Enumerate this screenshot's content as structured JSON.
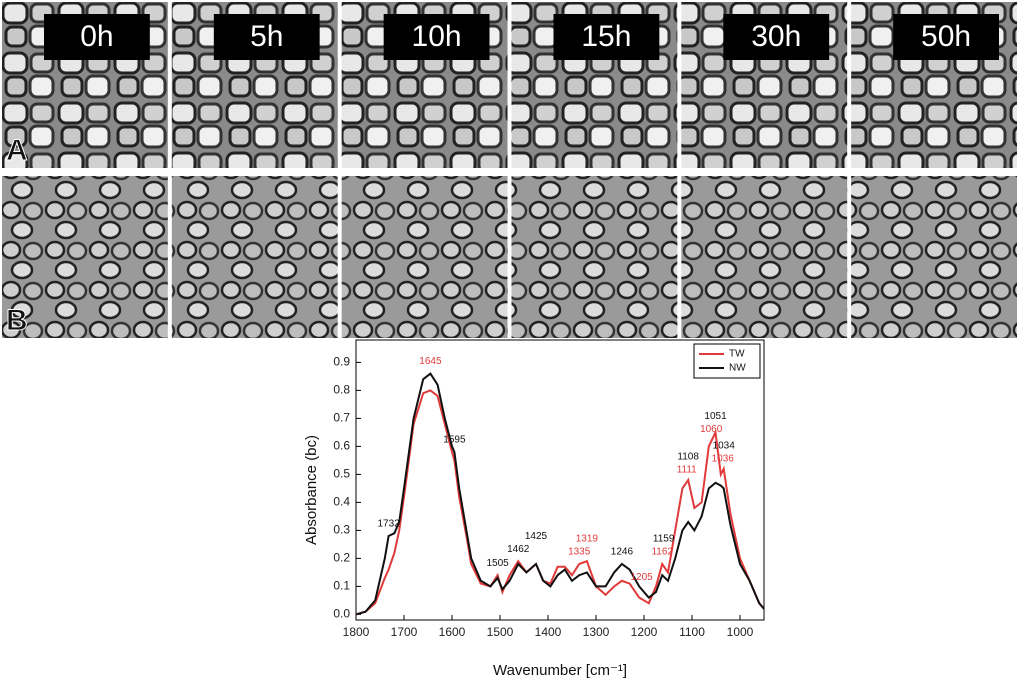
{
  "panels": {
    "time_labels": [
      "0h",
      "5h",
      "10h",
      "15h",
      "30h",
      "50h"
    ],
    "row_labels": [
      "A",
      "B"
    ]
  },
  "chart_data": {
    "type": "line",
    "xlabel": "Wavenumber [cm⁻¹]",
    "ylabel": "Absorbance (bc)",
    "x": [
      1800,
      1780,
      1760,
      1740,
      1732,
      1720,
      1710,
      1700,
      1680,
      1660,
      1645,
      1630,
      1615,
      1600,
      1595,
      1585,
      1570,
      1560,
      1540,
      1520,
      1505,
      1495,
      1480,
      1462,
      1445,
      1425,
      1410,
      1395,
      1380,
      1365,
      1350,
      1335,
      1319,
      1300,
      1280,
      1262,
      1246,
      1230,
      1210,
      1190,
      1175,
      1162,
      1150,
      1135,
      1120,
      1108,
      1095,
      1080,
      1065,
      1051,
      1040,
      1034,
      1020,
      1000,
      980,
      960,
      950
    ],
    "series": [
      {
        "name": "TW",
        "color": "#e03a3a",
        "values": [
          0.0,
          0.01,
          0.04,
          0.13,
          0.16,
          0.22,
          0.3,
          0.42,
          0.68,
          0.79,
          0.8,
          0.78,
          0.68,
          0.58,
          0.55,
          0.42,
          0.28,
          0.18,
          0.11,
          0.1,
          0.14,
          0.08,
          0.14,
          0.19,
          0.15,
          0.18,
          0.12,
          0.11,
          0.17,
          0.17,
          0.14,
          0.18,
          0.19,
          0.1,
          0.07,
          0.1,
          0.12,
          0.11,
          0.06,
          0.04,
          0.1,
          0.18,
          0.15,
          0.3,
          0.45,
          0.48,
          0.38,
          0.4,
          0.6,
          0.65,
          0.5,
          0.52,
          0.36,
          0.2,
          0.12,
          0.04,
          0.02
        ]
      },
      {
        "name": "NW",
        "color": "#111111",
        "values": [
          0.0,
          0.01,
          0.05,
          0.2,
          0.28,
          0.29,
          0.33,
          0.45,
          0.7,
          0.84,
          0.86,
          0.82,
          0.7,
          0.6,
          0.58,
          0.45,
          0.3,
          0.2,
          0.12,
          0.1,
          0.13,
          0.09,
          0.12,
          0.18,
          0.15,
          0.18,
          0.12,
          0.1,
          0.14,
          0.16,
          0.12,
          0.14,
          0.15,
          0.1,
          0.1,
          0.15,
          0.18,
          0.16,
          0.1,
          0.06,
          0.08,
          0.14,
          0.12,
          0.2,
          0.3,
          0.33,
          0.3,
          0.35,
          0.45,
          0.47,
          0.46,
          0.45,
          0.32,
          0.18,
          0.12,
          0.04,
          0.02
        ]
      }
    ],
    "annotations": [
      {
        "text": "1645",
        "color": "#e03a3a"
      },
      {
        "text": "1732",
        "color": "#111111"
      },
      {
        "text": "1595",
        "color": "#111111"
      },
      {
        "text": "1505",
        "color": "#111111"
      },
      {
        "text": "1462",
        "color": "#111111"
      },
      {
        "text": "1425",
        "color": "#111111"
      },
      {
        "text": "1335",
        "color": "#e03a3a"
      },
      {
        "text": "1319",
        "color": "#e03a3a"
      },
      {
        "text": "1246",
        "color": "#111111"
      },
      {
        "text": "1205",
        "color": "#e03a3a"
      },
      {
        "text": "1162",
        "color": "#e03a3a"
      },
      {
        "text": "1159",
        "color": "#111111"
      },
      {
        "text": "1111",
        "color": "#e03a3a"
      },
      {
        "text": "1108",
        "color": "#111111"
      },
      {
        "text": "1060",
        "color": "#e03a3a"
      },
      {
        "text": "1051",
        "color": "#111111"
      },
      {
        "text": "1036",
        "color": "#e03a3a"
      },
      {
        "text": "1034",
        "color": "#111111"
      }
    ],
    "xlim": [
      1800,
      950
    ],
    "xticks": [
      1800,
      1700,
      1600,
      1500,
      1400,
      1300,
      1200,
      1100,
      1000
    ],
    "ylim": [
      -0.02,
      0.98
    ],
    "yticks": [
      {
        "value": 0,
        "label": "0.0"
      },
      0.1,
      0.2,
      0.3,
      0.4,
      0.5,
      0.6,
      0.7,
      0.8,
      0.9
    ],
    "legend": "upper right"
  }
}
